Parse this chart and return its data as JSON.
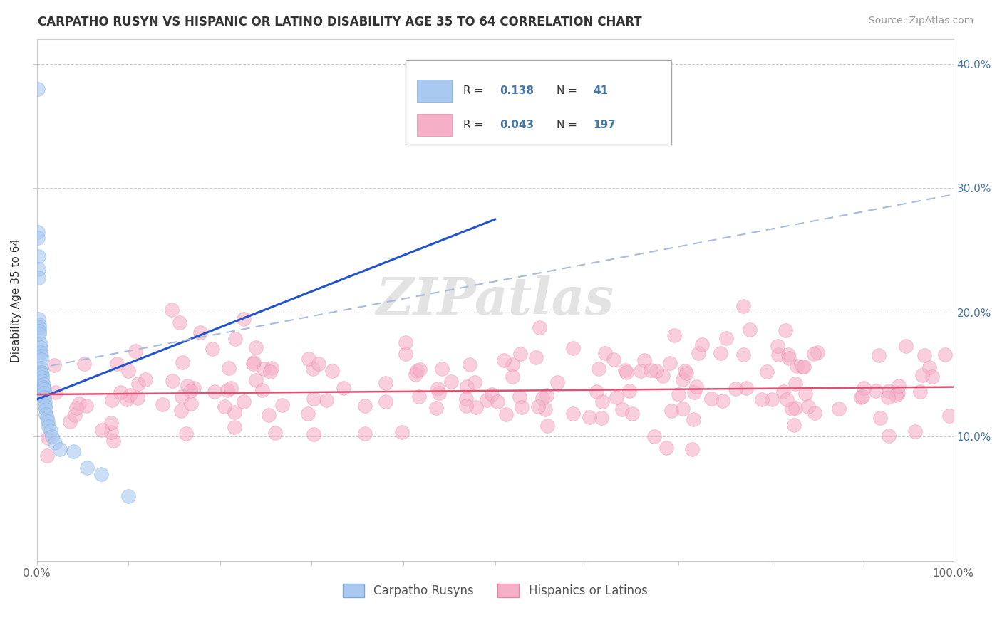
{
  "title": "CARPATHO RUSYN VS HISPANIC OR LATINO DISABILITY AGE 35 TO 64 CORRELATION CHART",
  "source": "Source: ZipAtlas.com",
  "ylabel": "Disability Age 35 to 64",
  "blue_color": "#a8c8f0",
  "blue_edge_color": "#7aaad8",
  "pink_color": "#f5b0c8",
  "pink_edge_color": "#e888a8",
  "blue_line_color": "#2255cc",
  "pink_line_color": "#e05070",
  "dashed_line_color": "#aabbdd",
  "grid_color": "#cccccc",
  "tick_color": "#4477aa",
  "watermark_color": "#e0e0e0",
  "legend_box_color": "#aaaaaa",
  "r1": "0.138",
  "n1": "41",
  "r2": "0.043",
  "n2": "197"
}
